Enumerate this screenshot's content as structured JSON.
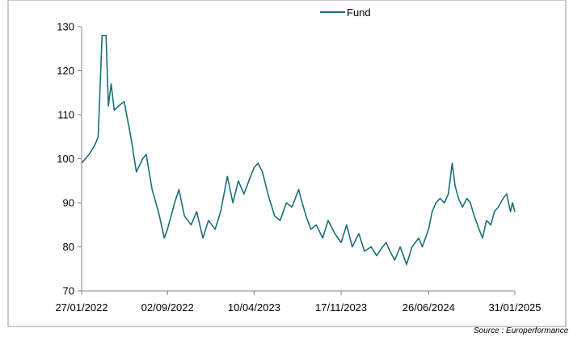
{
  "source_text": "Source : Europerformance",
  "chart_data": {
    "type": "line",
    "title": "",
    "xlabel": "",
    "ylabel": "",
    "ylim": [
      70,
      130
    ],
    "yticks": [
      70,
      80,
      90,
      100,
      110,
      120,
      130
    ],
    "xticks": [
      "27/01/2022",
      "02/09/2022",
      "10/04/2023",
      "17/11/2023",
      "26/06/2024",
      "31/01/2025"
    ],
    "xlim": [
      "27/01/2022",
      "31/01/2025"
    ],
    "grid": false,
    "legend": {
      "position": "top-center"
    },
    "series": [
      {
        "name": "Fund",
        "color": "#1b6e7a",
        "points": [
          [
            "27/01/2022",
            99
          ],
          [
            "15/02/2022",
            101
          ],
          [
            "01/03/2022",
            103
          ],
          [
            "10/03/2022",
            105
          ],
          [
            "20/03/2022",
            128
          ],
          [
            "30/03/2022",
            128
          ],
          [
            "05/04/2022",
            112
          ],
          [
            "12/04/2022",
            117
          ],
          [
            "20/04/2022",
            111
          ],
          [
            "01/05/2022",
            112
          ],
          [
            "15/05/2022",
            113
          ],
          [
            "01/06/2022",
            105
          ],
          [
            "15/06/2022",
            97
          ],
          [
            "01/07/2022",
            100
          ],
          [
            "10/07/2022",
            101
          ],
          [
            "25/07/2022",
            93
          ],
          [
            "10/08/2022",
            88
          ],
          [
            "25/08/2022",
            82
          ],
          [
            "02/09/2022",
            84
          ],
          [
            "20/09/2022",
            90
          ],
          [
            "01/10/2022",
            93
          ],
          [
            "15/10/2022",
            87
          ],
          [
            "01/11/2022",
            85
          ],
          [
            "15/11/2022",
            88
          ],
          [
            "01/12/2022",
            82
          ],
          [
            "15/12/2022",
            86
          ],
          [
            "01/01/2023",
            84
          ],
          [
            "15/01/2023",
            88
          ],
          [
            "01/02/2023",
            96
          ],
          [
            "15/02/2023",
            90
          ],
          [
            "01/03/2023",
            95
          ],
          [
            "15/03/2023",
            92
          ],
          [
            "01/04/2023",
            96
          ],
          [
            "10/04/2023",
            98
          ],
          [
            "20/04/2023",
            99
          ],
          [
            "01/05/2023",
            97
          ],
          [
            "15/05/2023",
            92
          ],
          [
            "01/06/2023",
            87
          ],
          [
            "15/06/2023",
            86
          ],
          [
            "01/07/2023",
            90
          ],
          [
            "15/07/2023",
            89
          ],
          [
            "01/08/2023",
            93
          ],
          [
            "10/08/2023",
            90
          ],
          [
            "20/08/2023",
            87
          ],
          [
            "01/09/2023",
            84
          ],
          [
            "15/09/2023",
            85
          ],
          [
            "01/10/2023",
            82
          ],
          [
            "15/10/2023",
            86
          ],
          [
            "01/11/2023",
            83
          ],
          [
            "17/11/2023",
            81
          ],
          [
            "01/12/2023",
            85
          ],
          [
            "15/12/2023",
            80
          ],
          [
            "01/01/2024",
            83
          ],
          [
            "15/01/2024",
            79
          ],
          [
            "01/02/2024",
            80
          ],
          [
            "15/02/2024",
            78
          ],
          [
            "01/03/2024",
            80
          ],
          [
            "10/03/2024",
            81
          ],
          [
            "20/03/2024",
            79
          ],
          [
            "01/04/2024",
            77
          ],
          [
            "15/04/2024",
            80
          ],
          [
            "01/05/2024",
            76
          ],
          [
            "15/05/2024",
            80
          ],
          [
            "01/06/2024",
            82
          ],
          [
            "10/06/2024",
            80
          ],
          [
            "26/06/2024",
            84
          ],
          [
            "05/07/2024",
            88
          ],
          [
            "15/07/2024",
            90
          ],
          [
            "25/07/2024",
            91
          ],
          [
            "05/08/2024",
            90
          ],
          [
            "15/08/2024",
            92
          ],
          [
            "25/08/2024",
            99
          ],
          [
            "01/09/2024",
            94
          ],
          [
            "10/09/2024",
            91
          ],
          [
            "20/09/2024",
            89
          ],
          [
            "01/10/2024",
            91
          ],
          [
            "10/10/2024",
            90
          ],
          [
            "20/10/2024",
            87
          ],
          [
            "01/11/2024",
            84
          ],
          [
            "10/11/2024",
            82
          ],
          [
            "20/11/2024",
            86
          ],
          [
            "01/12/2024",
            85
          ],
          [
            "10/12/2024",
            88
          ],
          [
            "20/12/2024",
            89
          ],
          [
            "01/01/2025",
            91
          ],
          [
            "10/01/2025",
            92
          ],
          [
            "20/01/2025",
            88
          ],
          [
            "25/01/2025",
            90
          ],
          [
            "31/01/2025",
            88
          ]
        ]
      }
    ]
  }
}
